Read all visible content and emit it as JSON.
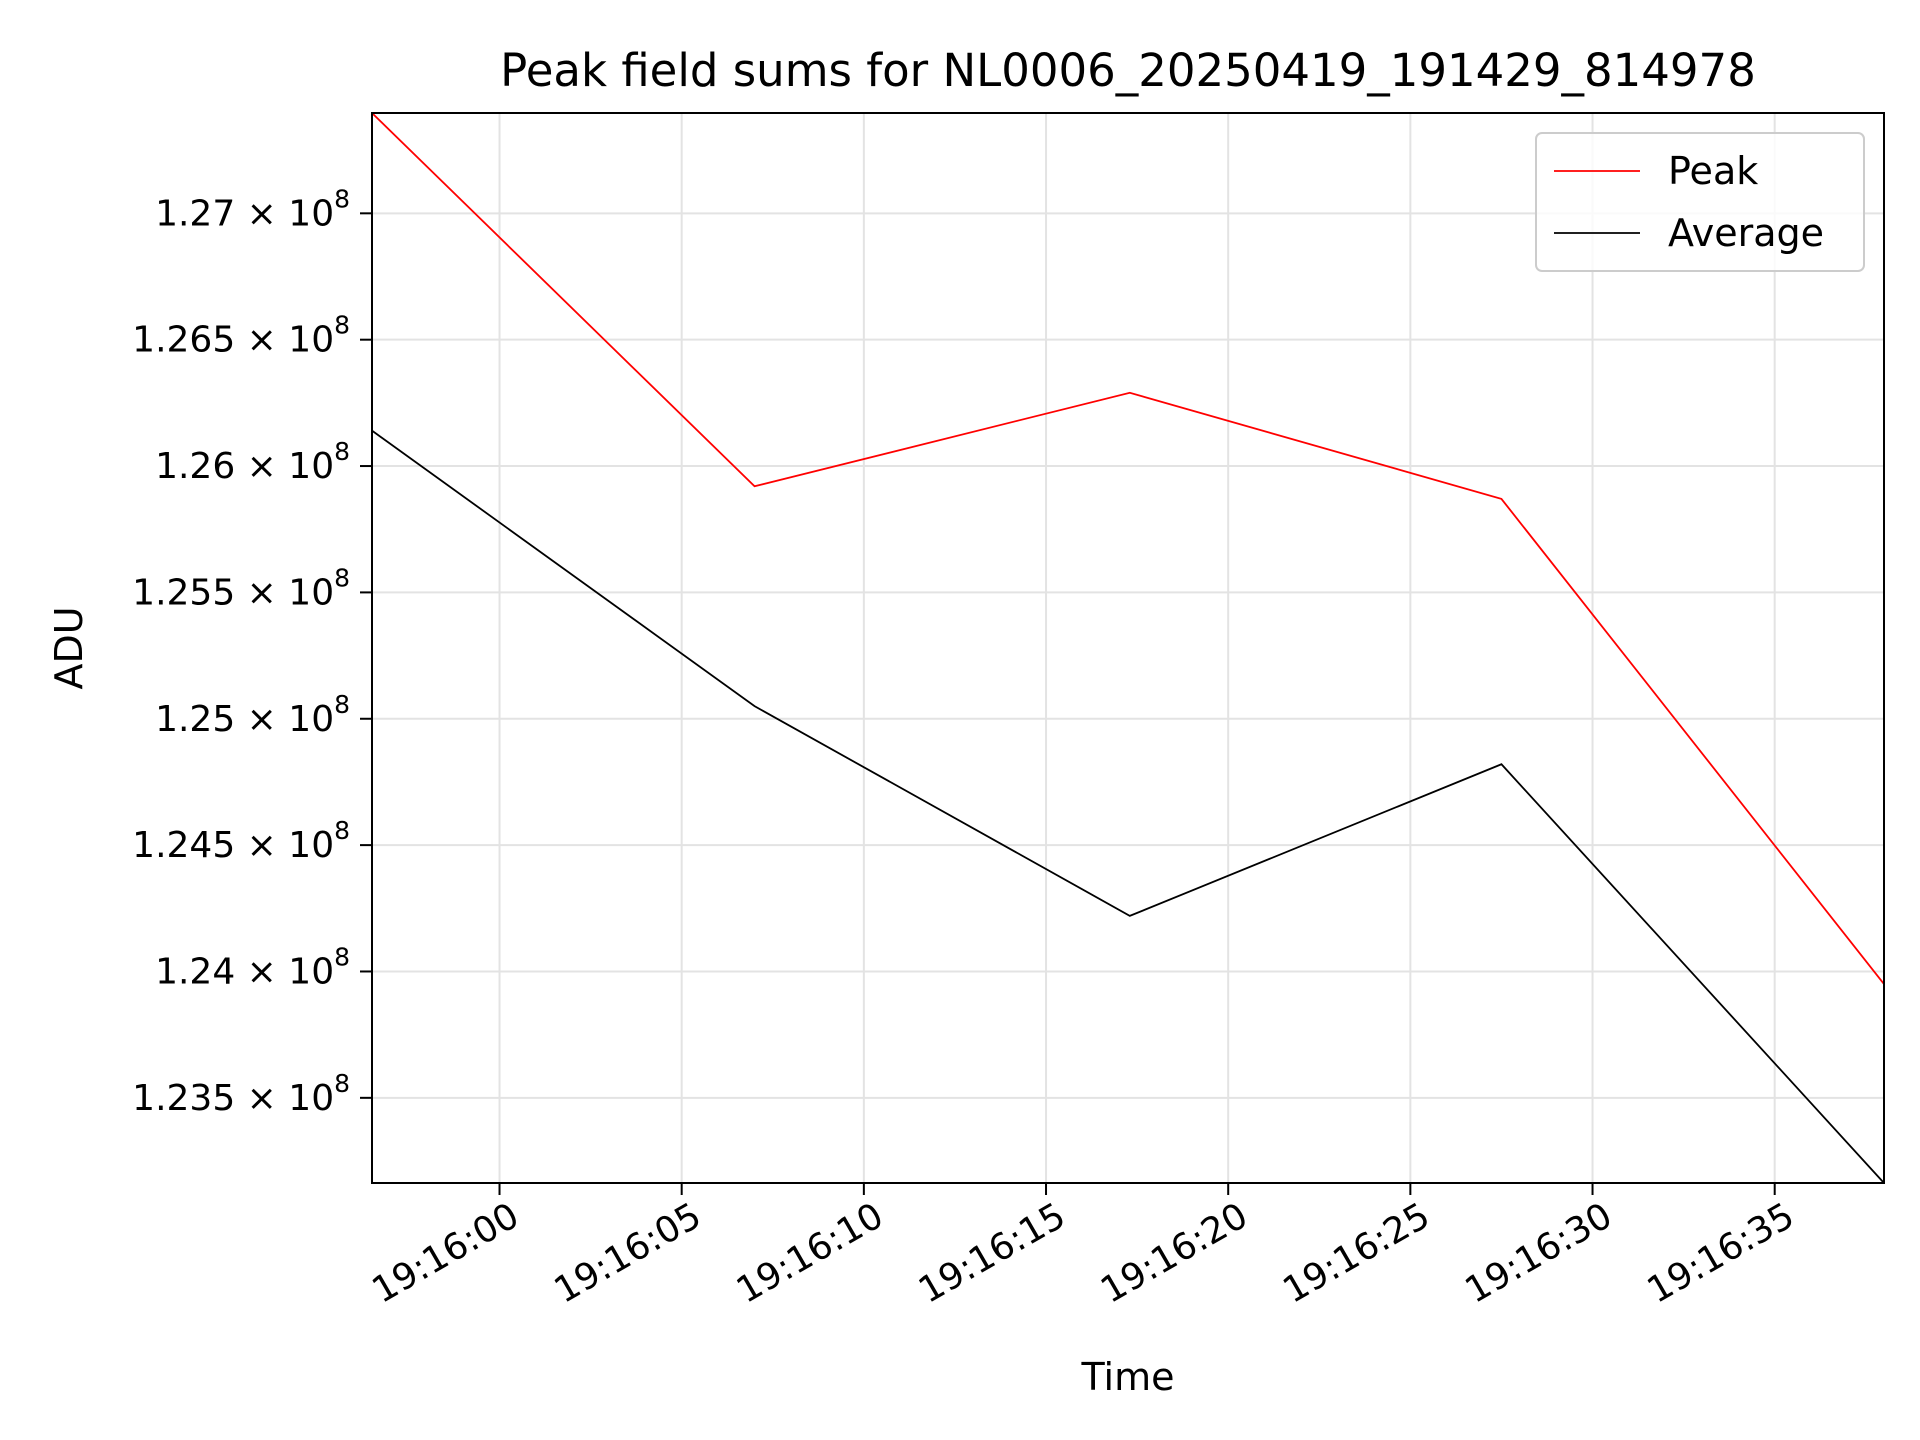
{
  "chart_data": {
    "type": "line",
    "title": "Peak field sums for NL0006_20250419_191429_814978",
    "xlabel": "Time",
    "ylabel": "ADU",
    "x": [
      "19:15:56.5",
      "19:16:07.0",
      "19:16:17.3",
      "19:16:27.5",
      "19:16:38.0"
    ],
    "xlim": [
      "19:15:56.5",
      "19:16:38.0"
    ],
    "ylim": [
      123163000,
      127397000
    ],
    "x_ticks": [
      "19:16:00",
      "19:16:05",
      "19:16:10",
      "19:16:15",
      "19:16:20",
      "19:16:25",
      "19:16:30",
      "19:16:35"
    ],
    "y_ticks": [
      {
        "value": 123500000,
        "mantissa": "1.235",
        "exp": "8"
      },
      {
        "value": 124000000,
        "mantissa": "1.24",
        "exp": "8"
      },
      {
        "value": 124500000,
        "mantissa": "1.245",
        "exp": "8"
      },
      {
        "value": 125000000,
        "mantissa": "1.25",
        "exp": "8"
      },
      {
        "value": 125500000,
        "mantissa": "1.255",
        "exp": "8"
      },
      {
        "value": 126000000,
        "mantissa": "1.26",
        "exp": "8"
      },
      {
        "value": 126500000,
        "mantissa": "1.265",
        "exp": "8"
      },
      {
        "value": 127000000,
        "mantissa": "1.27",
        "exp": "8"
      }
    ],
    "tick_base": "× 10",
    "grid": true,
    "legend_position": "top-right",
    "series": [
      {
        "name": "Peak",
        "color": "#ff0000",
        "values": [
          127397000,
          125920000,
          126290000,
          125870000,
          123950000
        ]
      },
      {
        "name": "Average",
        "color": "#000000",
        "values": [
          126140000,
          125050000,
          124220000,
          124820000,
          123163000
        ]
      }
    ]
  }
}
